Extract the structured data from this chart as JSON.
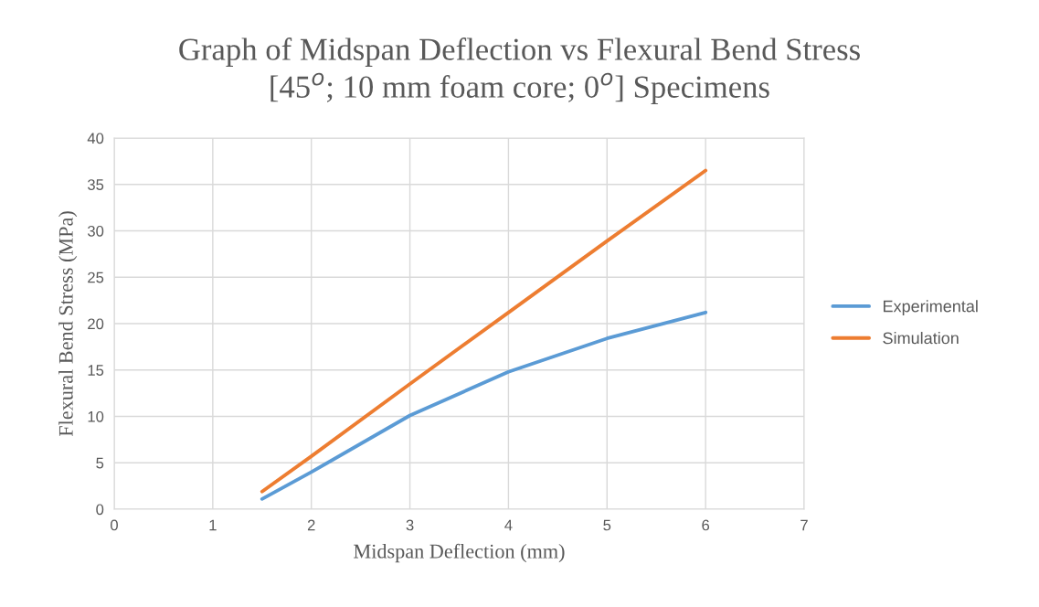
{
  "chart_data": {
    "type": "line",
    "title": "Graph of Midspan Deflection vs Flexural Bend Stress",
    "subtitle": "[45$^{o}$; 10 mm foam core; 0$^{o}$] Specimens",
    "xlabel": "Midspan Deflection (mm)",
    "ylabel": "Flexural Bend Stress (MPa)",
    "x": [
      1.5,
      2,
      3,
      4,
      5,
      6
    ],
    "series": [
      {
        "name": "Experimental",
        "color": "#5b9bd5",
        "values": [
          1.1,
          4.0,
          10.1,
          14.8,
          18.4,
          21.2
        ]
      },
      {
        "name": "Simulation",
        "color": "#ed7d31",
        "values": [
          1.9,
          5.7,
          13.5,
          21.2,
          28.9,
          36.5
        ]
      }
    ],
    "xlim": [
      0,
      7
    ],
    "xticks": [
      0,
      1,
      2,
      3,
      4,
      5,
      6,
      7
    ],
    "ylim": [
      0,
      40
    ],
    "yticks": [
      0,
      5,
      10,
      15,
      20,
      25,
      30,
      35,
      40
    ],
    "grid": true,
    "legend": "right",
    "marker": "none",
    "line_style": "solid"
  }
}
